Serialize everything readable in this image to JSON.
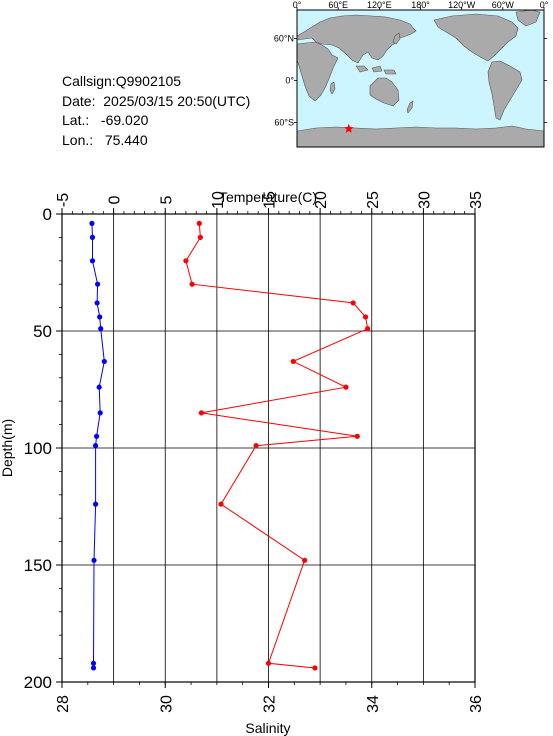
{
  "station": {
    "callsign_label": "Callsign:",
    "callsign": "Q9902105",
    "date_label": "Date:",
    "date": "2025/03/15 20:50(UTC)",
    "lat_label": "Lat.:",
    "lat": "-69.020",
    "lon_label": "Lon.:",
    "lon": "75.440"
  },
  "map": {
    "lon_labels": [
      "0°",
      "60°E",
      "120°E",
      "180°",
      "120°W",
      "60°W",
      "0°"
    ],
    "lat_labels": [
      "60°N",
      "0°",
      "60°S"
    ],
    "ocean_color": "#ccf5ff",
    "land_color": "#aaaaaa",
    "marker_color": "#ff0000",
    "marker_icon": "star"
  },
  "chart_data": {
    "type": "line",
    "y_label": "Depth(m)",
    "y_range": [
      0,
      200
    ],
    "y_reversed": true,
    "y_ticks": [
      "0",
      "50",
      "100",
      "150",
      "200"
    ],
    "top_axis": {
      "label": "Temperature(C)",
      "range": [
        -5,
        35
      ],
      "ticks": [
        "-5",
        "0",
        "5",
        "10",
        "15",
        "20",
        "25",
        "30",
        "35"
      ]
    },
    "bottom_axis": {
      "label": "Salinity",
      "range": [
        28,
        36
      ],
      "ticks": [
        "28",
        "30",
        "32",
        "34",
        "36"
      ]
    },
    "grid": true,
    "series": [
      {
        "axis": "top",
        "color": "#ff0000",
        "points": [
          {
            "x": 8.3,
            "y": 4
          },
          {
            "x": 8.4,
            "y": 10
          },
          {
            "x": 7.0,
            "y": 20
          },
          {
            "x": 7.6,
            "y": 30
          },
          {
            "x": 23.2,
            "y": 38
          },
          {
            "x": 24.4,
            "y": 44
          },
          {
            "x": 24.6,
            "y": 49
          },
          {
            "x": 17.4,
            "y": 63
          },
          {
            "x": 22.5,
            "y": 74
          },
          {
            "x": 8.5,
            "y": 85
          },
          {
            "x": 23.6,
            "y": 95
          },
          {
            "x": 13.8,
            "y": 99
          },
          {
            "x": 10.4,
            "y": 124
          },
          {
            "x": 18.5,
            "y": 148
          },
          {
            "x": 15.0,
            "y": 192
          },
          {
            "x": 19.5,
            "y": 194
          }
        ]
      },
      {
        "axis": "bottom",
        "color": "#0000ff",
        "points": [
          {
            "x": 28.58,
            "y": 4
          },
          {
            "x": 28.59,
            "y": 10
          },
          {
            "x": 28.59,
            "y": 20
          },
          {
            "x": 28.69,
            "y": 30
          },
          {
            "x": 28.68,
            "y": 38
          },
          {
            "x": 28.73,
            "y": 44
          },
          {
            "x": 28.75,
            "y": 49
          },
          {
            "x": 28.82,
            "y": 63
          },
          {
            "x": 28.72,
            "y": 74
          },
          {
            "x": 28.74,
            "y": 85
          },
          {
            "x": 28.67,
            "y": 95
          },
          {
            "x": 28.65,
            "y": 99
          },
          {
            "x": 28.65,
            "y": 124
          },
          {
            "x": 28.62,
            "y": 148
          },
          {
            "x": 28.61,
            "y": 192
          },
          {
            "x": 28.61,
            "y": 194
          }
        ]
      }
    ]
  }
}
